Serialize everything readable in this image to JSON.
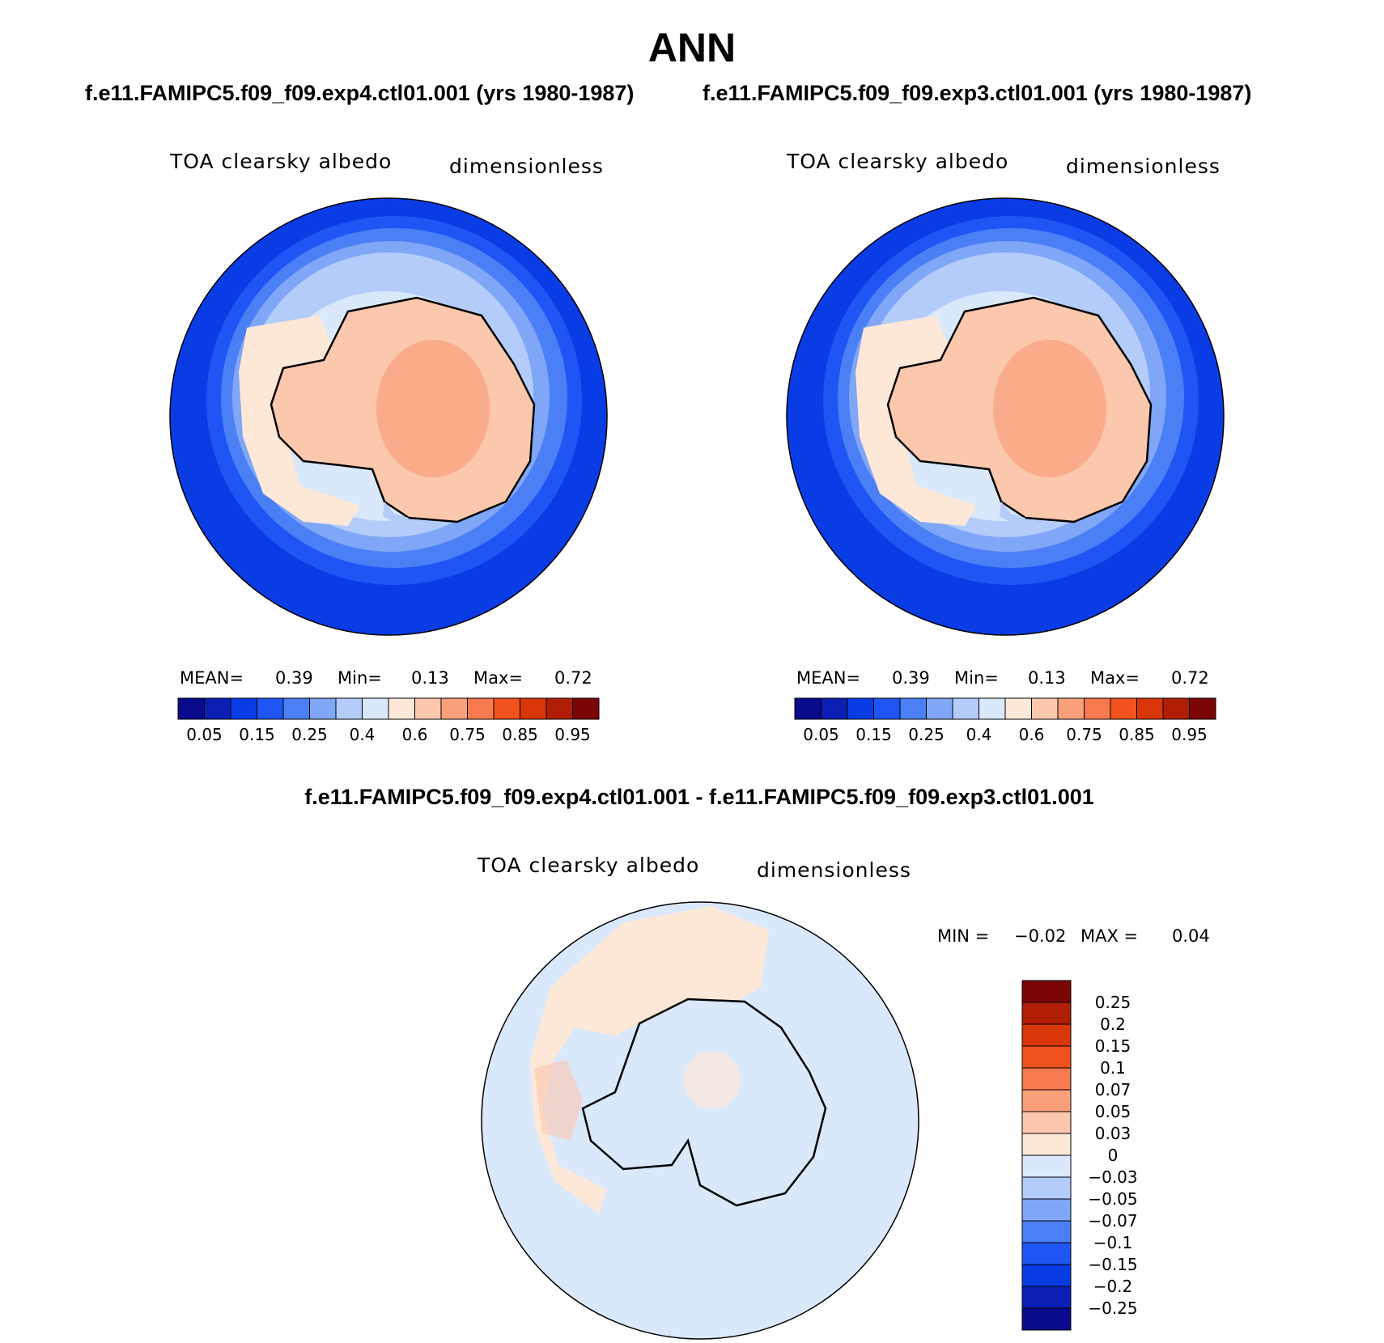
{
  "figure_title": "ANN",
  "panels": [
    {
      "case": "f.e11.FAMIPC5.f09_f09.exp4.ctl01.001 (yrs 1980-1987)",
      "variable": "TOA clearsky albedo",
      "units": "dimensionless",
      "mean_label": "MEAN=",
      "mean": "0.39",
      "min_label": "Min=",
      "min": "0.13",
      "max_label": "Max=",
      "max": "0.72"
    },
    {
      "case": "f.e11.FAMIPC5.f09_f09.exp3.ctl01.001 (yrs 1980-1987)",
      "variable": "TOA clearsky albedo",
      "units": "dimensionless",
      "mean_label": "MEAN=",
      "mean": "0.39",
      "min_label": "Min=",
      "min": "0.13",
      "max_label": "Max=",
      "max": "0.72"
    }
  ],
  "diff": {
    "title": "f.e11.FAMIPC5.f09_f09.exp4.ctl01.001 - f.e11.FAMIPC5.f09_f09.exp3.ctl01.001",
    "variable": "TOA clearsky albedo",
    "units": "dimensionless",
    "min_label": "MIN =",
    "min": "−0.02",
    "max_label": "MAX =",
    "max": "0.04"
  },
  "chart_data": [
    {
      "type": "heatmap",
      "projection": "south polar stereographic",
      "title": "TOA clearsky albedo",
      "units": "dimensionless",
      "colorbar": {
        "orientation": "horizontal",
        "colors": [
          "#0a0a8c",
          "#0b1fb4",
          "#0a3ce6",
          "#1f55f5",
          "#4a7ff5",
          "#7fa6f7",
          "#b4ccfa",
          "#dae8fb",
          "#fde8d8",
          "#fbc7ad",
          "#f9a07b",
          "#f77a4e",
          "#f2521e",
          "#d9360a",
          "#b01e06",
          "#7c0606"
        ],
        "tick_labels": [
          "0.05",
          "0.15",
          "0.25",
          "0.4",
          "0.6",
          "0.75",
          "0.85",
          "0.95"
        ]
      },
      "stats": {
        "mean": 0.39,
        "min": 0.13,
        "max": 0.72
      }
    },
    {
      "type": "heatmap",
      "projection": "south polar stereographic",
      "title": "TOA clearsky albedo",
      "units": "dimensionless",
      "colorbar": {
        "orientation": "horizontal",
        "colors": [
          "#0a0a8c",
          "#0b1fb4",
          "#0a3ce6",
          "#1f55f5",
          "#4a7ff5",
          "#7fa6f7",
          "#b4ccfa",
          "#dae8fb",
          "#fde8d8",
          "#fbc7ad",
          "#f9a07b",
          "#f77a4e",
          "#f2521e",
          "#d9360a",
          "#b01e06",
          "#7c0606"
        ],
        "tick_labels": [
          "0.05",
          "0.15",
          "0.25",
          "0.4",
          "0.6",
          "0.75",
          "0.85",
          "0.95"
        ]
      },
      "stats": {
        "mean": 0.39,
        "min": 0.13,
        "max": 0.72
      }
    },
    {
      "type": "heatmap",
      "projection": "south polar stereographic",
      "title": "TOA clearsky albedo",
      "units": "dimensionless",
      "colorbar": {
        "orientation": "vertical",
        "colors": [
          "#7c0606",
          "#b01e06",
          "#d9360a",
          "#f2521e",
          "#f77a4e",
          "#f9a07b",
          "#fbc7ad",
          "#fde8d8",
          "#dae8fb",
          "#b4ccfa",
          "#7fa6f7",
          "#4a7ff5",
          "#1f55f5",
          "#0a3ce6",
          "#0b1fb4",
          "#0a0a8c"
        ],
        "tick_labels": [
          "0.25",
          "0.2",
          "0.15",
          "0.1",
          "0.07",
          "0.05",
          "0.03",
          "0",
          "−0.03",
          "−0.05",
          "−0.07",
          "−0.1",
          "−0.15",
          "−0.2",
          "−0.25"
        ]
      },
      "stats": {
        "min": -0.02,
        "max": 0.04
      }
    }
  ]
}
